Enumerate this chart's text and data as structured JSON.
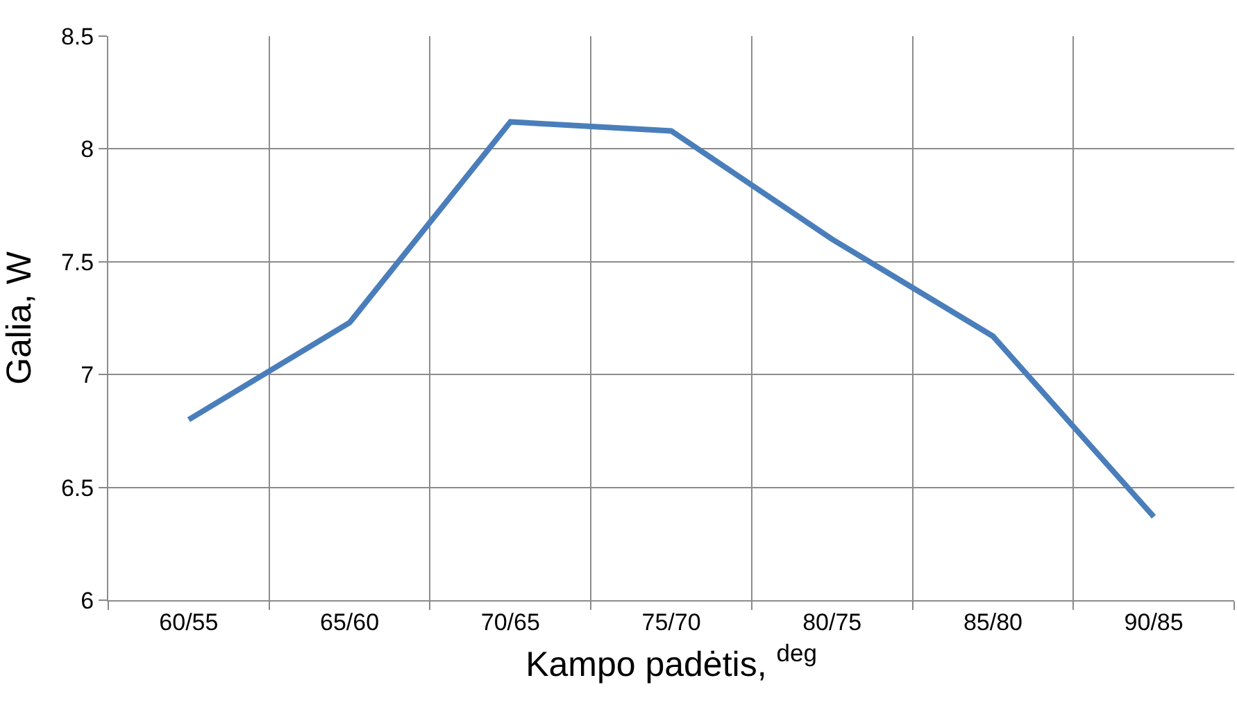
{
  "chart_data": {
    "type": "line",
    "xlabel": "Kampo padėtis, $^{deg}$",
    "ylabel": "Galia, W",
    "categories": [
      "60/55",
      "65/60",
      "70/65",
      "75/70",
      "80/75",
      "85/80",
      "90/85"
    ],
    "series": [
      {
        "color": "#4a7ebb",
        "values": [
          6.8,
          7.23,
          8.12,
          8.08,
          7.6,
          7.17,
          6.37
        ]
      }
    ],
    "ylim": [
      6,
      8.5
    ],
    "yticks": [
      6,
      6.5,
      7,
      7.5,
      8,
      8.5
    ],
    "grid": true,
    "marker": "none",
    "line_style": "solid"
  }
}
